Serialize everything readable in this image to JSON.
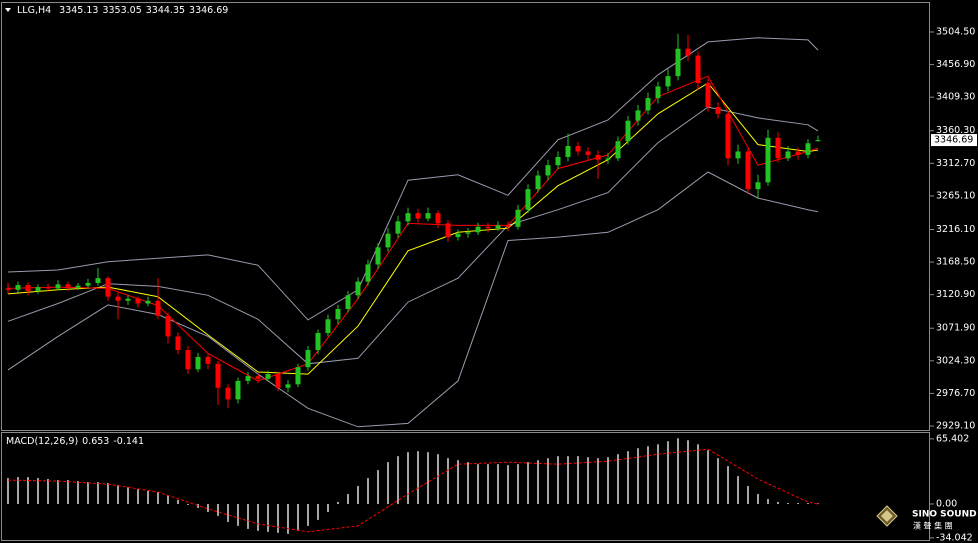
{
  "chart_data": [
    {
      "type": "candlestick",
      "symbol": "LLG,H4",
      "ylim": [
        2923.3,
        3543.9
      ],
      "yticks": [
        {
          "value": 3504.5,
          "label": "3504.50"
        },
        {
          "value": 3456.9,
          "label": "3456.90"
        },
        {
          "value": 3409.3,
          "label": "3409.30"
        },
        {
          "value": 3360.3,
          "label": "3360.30"
        },
        {
          "value": 3312.7,
          "label": "3312.70"
        },
        {
          "value": 3265.1,
          "label": "3265.10"
        },
        {
          "value": 3216.1,
          "label": "3216.10"
        },
        {
          "value": 3168.5,
          "label": "3168.50"
        },
        {
          "value": 3120.9,
          "label": "3120.90"
        },
        {
          "value": 3071.9,
          "label": "3071.90"
        },
        {
          "value": 3024.3,
          "label": "3024.30"
        },
        {
          "value": 2976.7,
          "label": "2976.70"
        },
        {
          "value": 2929.1,
          "label": "2929.10"
        }
      ],
      "bull_color": "#22c322",
      "bear_color": "#ff0000",
      "ohlc": [
        [
          3130,
          3138,
          3122,
          3128
        ],
        [
          3128,
          3140,
          3124,
          3135
        ],
        [
          3135,
          3139,
          3120,
          3126
        ],
        [
          3126,
          3136,
          3122,
          3132
        ],
        [
          3132,
          3137,
          3125,
          3130
        ],
        [
          3130,
          3142,
          3127,
          3136
        ],
        [
          3136,
          3140,
          3126,
          3131
        ],
        [
          3131,
          3138,
          3128,
          3134
        ],
        [
          3134,
          3144,
          3130,
          3138
        ],
        [
          3138,
          3160,
          3134,
          3145
        ],
        [
          3145,
          3148,
          3112,
          3118
        ],
        [
          3118,
          3124,
          3085,
          3112
        ],
        [
          3112,
          3120,
          3106,
          3115
        ],
        [
          3115,
          3118,
          3102,
          3108
        ],
        [
          3108,
          3118,
          3104,
          3112
        ],
        [
          3112,
          3145,
          3085,
          3090
        ],
        [
          3090,
          3095,
          3050,
          3060
        ],
        [
          3060,
          3066,
          3034,
          3040
        ],
        [
          3040,
          3046,
          3005,
          3012
        ],
        [
          3012,
          3036,
          3008,
          3030
        ],
        [
          3030,
          3034,
          3012,
          3020
        ],
        [
          3020,
          3024,
          2960,
          2985
        ],
        [
          2985,
          2990,
          2955,
          2968
        ],
        [
          2968,
          3000,
          2962,
          2995
        ],
        [
          2995,
          3008,
          2990,
          3002
        ],
        [
          3002,
          3006,
          2992,
          2998
        ],
        [
          2998,
          3010,
          2994,
          3005
        ],
        [
          3005,
          3008,
          2980,
          2985
        ],
        [
          2985,
          2996,
          2978,
          2990
        ],
        [
          2990,
          3020,
          2986,
          3015
        ],
        [
          3015,
          3046,
          3010,
          3040
        ],
        [
          3040,
          3070,
          3034,
          3065
        ],
        [
          3065,
          3092,
          3060,
          3085
        ],
        [
          3085,
          3106,
          3078,
          3100
        ],
        [
          3100,
          3126,
          3095,
          3120
        ],
        [
          3120,
          3146,
          3114,
          3140
        ],
        [
          3140,
          3172,
          3134,
          3165
        ],
        [
          3165,
          3196,
          3158,
          3190
        ],
        [
          3190,
          3218,
          3184,
          3210
        ],
        [
          3210,
          3236,
          3204,
          3228
        ],
        [
          3228,
          3248,
          3222,
          3240
        ],
        [
          3240,
          3246,
          3226,
          3232
        ],
        [
          3232,
          3248,
          3228,
          3240
        ],
        [
          3240,
          3244,
          3218,
          3225
        ],
        [
          3225,
          3230,
          3198,
          3205
        ],
        [
          3205,
          3216,
          3200,
          3210
        ],
        [
          3210,
          3218,
          3204,
          3212
        ],
        [
          3212,
          3226,
          3208,
          3220
        ],
        [
          3220,
          3226,
          3212,
          3218
        ],
        [
          3218,
          3228,
          3214,
          3222
        ],
        [
          3222,
          3228,
          3214,
          3220
        ],
        [
          3220,
          3252,
          3216,
          3245
        ],
        [
          3245,
          3282,
          3240,
          3275
        ],
        [
          3275,
          3302,
          3270,
          3295
        ],
        [
          3295,
          3318,
          3288,
          3310
        ],
        [
          3310,
          3330,
          3304,
          3322
        ],
        [
          3322,
          3356,
          3316,
          3338
        ],
        [
          3338,
          3344,
          3324,
          3330
        ],
        [
          3330,
          3336,
          3318,
          3325
        ],
        [
          3325,
          3332,
          3290,
          3318
        ],
        [
          3318,
          3328,
          3312,
          3320
        ],
        [
          3320,
          3352,
          3316,
          3345
        ],
        [
          3345,
          3382,
          3340,
          3375
        ],
        [
          3375,
          3398,
          3368,
          3390
        ],
        [
          3390,
          3416,
          3384,
          3408
        ],
        [
          3408,
          3432,
          3400,
          3425
        ],
        [
          3425,
          3450,
          3418,
          3440
        ],
        [
          3440,
          3502,
          3434,
          3480
        ],
        [
          3480,
          3500,
          3462,
          3470
        ],
        [
          3470,
          3476,
          3420,
          3430
        ],
        [
          3430,
          3436,
          3388,
          3395
        ],
        [
          3395,
          3402,
          3378,
          3385
        ],
        [
          3385,
          3390,
          3310,
          3320
        ],
        [
          3320,
          3340,
          3312,
          3330
        ],
        [
          3330,
          3336,
          3268,
          3275
        ],
        [
          3275,
          3296,
          3262,
          3285
        ],
        [
          3285,
          3362,
          3280,
          3350
        ],
        [
          3350,
          3358,
          3314,
          3320
        ],
        [
          3320,
          3338,
          3316,
          3330
        ],
        [
          3330,
          3336,
          3318,
          3325
        ],
        [
          3325,
          3348,
          3320,
          3342
        ],
        [
          3345.13,
          3353.05,
          3344.35,
          3346.69
        ]
      ],
      "x": [
        0,
        5,
        10,
        15,
        20,
        25,
        30,
        35,
        40,
        45,
        50,
        55,
        60,
        65,
        70,
        75,
        80,
        81
      ],
      "series": [
        {
          "color": "#9a9aae",
          "values": [
            3154,
            3157,
            3169,
            3174,
            3179,
            3164,
            3084,
            3128,
            3288,
            3296,
            3266,
            3347,
            3376,
            3442,
            3490,
            3496,
            3493,
            3478
          ]
        },
        {
          "color": "#9a9aae",
          "values": [
            3082,
            3108,
            3137,
            3133,
            3120,
            3085,
            3020,
            3028,
            3110,
            3145,
            3222,
            3245,
            3270,
            3343,
            3395,
            3379,
            3369,
            3360
          ]
        },
        {
          "color": "#9a9aae",
          "values": [
            3011,
            3060,
            3106,
            3092,
            3060,
            3005,
            2955,
            2928,
            2933,
            2995,
            3200,
            3205,
            3212,
            3245,
            3300,
            3262,
            3245,
            3242
          ]
        },
        {
          "color": "#ffff00",
          "values": [
            3122,
            3128,
            3132,
            3118,
            3062,
            3008,
            3005,
            3075,
            3185,
            3212,
            3218,
            3280,
            3318,
            3385,
            3430,
            3340,
            3330,
            3332
          ]
        },
        {
          "color": "#ff0000",
          "values": [
            3130,
            3132,
            3130,
            3105,
            3035,
            2995,
            3020,
            3115,
            3225,
            3222,
            3222,
            3305,
            3325,
            3410,
            3440,
            3310,
            3330,
            3335
          ]
        }
      ],
      "watermark": {
        "title": "SINO SOUND",
        "subtitle": "漢 聲 集 團"
      }
    },
    {
      "type": "macd",
      "label": "MACD(12,26,9)",
      "ylim": [
        -36.2,
        70.3
      ],
      "yticks": [
        65.402,
        {
          "value": 0,
          "label": "0.00"
        },
        -34.042
      ],
      "histogram": {
        "color": "#ffffff",
        "values": [
          26,
          27,
          27,
          26,
          25,
          24,
          24,
          23,
          22,
          22,
          21,
          19,
          17,
          15,
          13,
          12,
          9,
          4,
          -1,
          -4,
          -8,
          -12,
          -18,
          -22,
          -25,
          -27,
          -28,
          -29,
          -30,
          -27,
          -22,
          -16,
          -8,
          2,
          10,
          18,
          26,
          34,
          42,
          48,
          52,
          53,
          52,
          50,
          46,
          44,
          42,
          40,
          40,
          40,
          39,
          40,
          42,
          44,
          46,
          48,
          48,
          48,
          47,
          46,
          47,
          50,
          53,
          56,
          58,
          60,
          63,
          66,
          64,
          60,
          54,
          46,
          38,
          28,
          18,
          10,
          5,
          2,
          1,
          1,
          0.9,
          0.653
        ]
      },
      "x": [
        0,
        5,
        10,
        15,
        20,
        25,
        30,
        35,
        40,
        45,
        50,
        55,
        60,
        65,
        70,
        75,
        80,
        81
      ],
      "signal": {
        "color": "#ff0000",
        "dashed": true,
        "values": [
          24,
          23,
          20,
          12,
          -5,
          -20,
          -28,
          -22,
          10,
          40,
          42,
          40,
          43,
          50,
          55,
          25,
          2,
          -0.141
        ]
      }
    }
  ]
}
